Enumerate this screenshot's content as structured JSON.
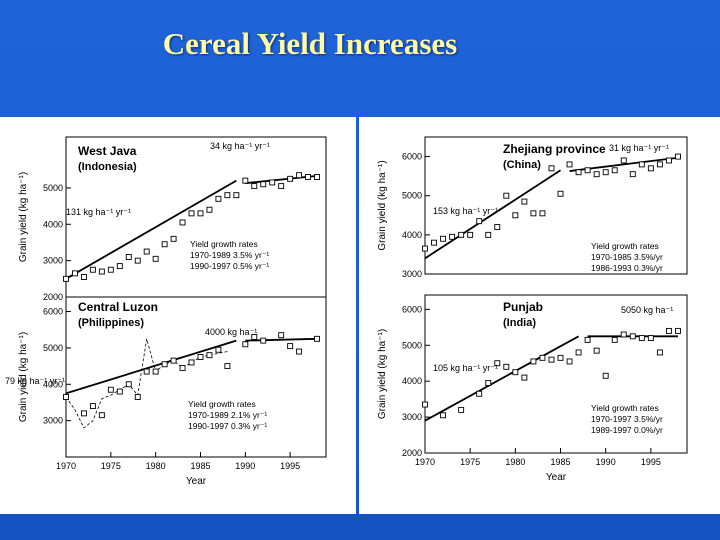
{
  "slide": {
    "title": "Cereal Yield Increases",
    "background_color": "#1a5cd0",
    "title_color": "#fff9a8"
  },
  "chart_data": [
    {
      "type": "scatter",
      "id": "west-java",
      "region": "West Java",
      "country": "(Indonesia)",
      "ylabel": "Grain yield (kg ha⁻¹)",
      "xlabel": "",
      "xlim": [
        1970,
        1999
      ],
      "ylim": [
        2000,
        6400
      ],
      "yticks": [
        2000,
        3000,
        4000,
        5000
      ],
      "yticklabels": [
        "2000",
        "3000",
        "4000",
        "5000"
      ],
      "points": [
        [
          1970,
          2500
        ],
        [
          1971,
          2650
        ],
        [
          1972,
          2550
        ],
        [
          1973,
          2750
        ],
        [
          1974,
          2700
        ],
        [
          1975,
          2750
        ],
        [
          1976,
          2850
        ],
        [
          1977,
          3100
        ],
        [
          1978,
          3000
        ],
        [
          1979,
          3250
        ],
        [
          1980,
          3050
        ],
        [
          1981,
          3450
        ],
        [
          1982,
          3600
        ],
        [
          1983,
          4050
        ],
        [
          1984,
          4300
        ],
        [
          1985,
          4300
        ],
        [
          1986,
          4400
        ],
        [
          1987,
          4700
        ],
        [
          1988,
          4800
        ],
        [
          1989,
          4800
        ],
        [
          1990,
          5200
        ],
        [
          1991,
          5050
        ],
        [
          1992,
          5100
        ],
        [
          1993,
          5150
        ],
        [
          1994,
          5050
        ],
        [
          1995,
          5250
        ],
        [
          1996,
          5350
        ],
        [
          1997,
          5300
        ],
        [
          1998,
          5300
        ]
      ],
      "trend_segments": [
        [
          [
            1970,
            2500
          ],
          [
            1989,
            5200
          ]
        ],
        [
          [
            1990,
            5130
          ],
          [
            1998,
            5330
          ]
        ]
      ],
      "annotations": {
        "slope_early": "131 kg ha⁻¹ yr⁻¹",
        "slope_late": "34 kg ha⁻¹ yr⁻¹",
        "growth_title": "Yield growth rates",
        "growth_1": "1970-1989  3.5% yr⁻¹",
        "growth_2": "1990-1997  0.5% yr⁻¹"
      }
    },
    {
      "type": "scatter",
      "id": "central-luzon",
      "region": "Central Luzon",
      "country": "(Philippines)",
      "ylabel": "Grain yield (kg ha⁻¹)",
      "xlabel": "Year",
      "xlim": [
        1970,
        1999
      ],
      "ylim": [
        2000,
        6400
      ],
      "xticks": [
        1970,
        1975,
        1980,
        1985,
        1990,
        1995
      ],
      "xticklabels": [
        "1970",
        "1975",
        "1980",
        "1985",
        "1990",
        "1995"
      ],
      "yticks": [
        3000,
        4000,
        5000,
        6000
      ],
      "yticklabels": [
        "3000",
        "4000",
        "5000",
        "6000"
      ],
      "points": [
        [
          1970,
          3650
        ],
        [
          1972,
          3200
        ],
        [
          1973,
          3400
        ],
        [
          1974,
          3150
        ],
        [
          1975,
          3850
        ],
        [
          1976,
          3800
        ],
        [
          1977,
          4000
        ],
        [
          1978,
          3650
        ],
        [
          1979,
          4350
        ],
        [
          1980,
          4350
        ],
        [
          1981,
          4550
        ],
        [
          1982,
          4650
        ],
        [
          1983,
          4450
        ],
        [
          1984,
          4600
        ],
        [
          1985,
          4750
        ],
        [
          1986,
          4800
        ],
        [
          1987,
          4950
        ],
        [
          1988,
          4500
        ],
        [
          1990,
          5100
        ],
        [
          1991,
          5300
        ],
        [
          1992,
          5200
        ],
        [
          1994,
          5350
        ],
        [
          1995,
          5050
        ],
        [
          1996,
          4900
        ],
        [
          1998,
          5250
        ]
      ],
      "irregular_line": [
        [
          1970,
          3650
        ],
        [
          1971,
          3300
        ],
        [
          1972,
          2800
        ],
        [
          1973,
          3000
        ],
        [
          1974,
          3600
        ],
        [
          1975,
          3700
        ],
        [
          1976,
          3850
        ],
        [
          1977,
          4000
        ],
        [
          1978,
          3700
        ],
        [
          1979,
          5250
        ],
        [
          1980,
          4350
        ],
        [
          1981,
          4550
        ],
        [
          1982,
          4650
        ],
        [
          1983,
          4450
        ],
        [
          1984,
          4600
        ],
        [
          1985,
          4750
        ],
        [
          1986,
          4800
        ],
        [
          1987,
          4850
        ],
        [
          1988,
          4900
        ]
      ],
      "trend_segments": [
        [
          [
            1970,
            3750
          ],
          [
            1989,
            5200
          ]
        ],
        [
          [
            1990,
            5200
          ],
          [
            1998,
            5250
          ]
        ]
      ],
      "annotations": {
        "slope_early": "79 kg ha⁻¹ yr⁻¹",
        "slope_late": "4000 kg ha⁻¹",
        "growth_title": "Yield growth rates",
        "growth_1": "1970-1989  2.1% yr⁻¹",
        "growth_2": "1990-1997  0.3% yr⁻¹"
      }
    },
    {
      "type": "scatter",
      "id": "zhejiang",
      "region": "Zhejiang province",
      "country": "(China)",
      "ylabel": "Grain yield (kg ha⁻¹)",
      "xlabel": "",
      "xlim": [
        1970,
        1999
      ],
      "ylim": [
        3000,
        6500
      ],
      "yticks": [
        3000,
        4000,
        5000,
        6000
      ],
      "yticklabels": [
        "3000",
        "4000",
        "5000",
        "6000"
      ],
      "points": [
        [
          1970,
          3650
        ],
        [
          1971,
          3800
        ],
        [
          1972,
          3900
        ],
        [
          1973,
          3950
        ],
        [
          1974,
          4000
        ],
        [
          1975,
          4000
        ],
        [
          1976,
          4350
        ],
        [
          1977,
          4000
        ],
        [
          1978,
          4200
        ],
        [
          1979,
          5000
        ],
        [
          1980,
          4500
        ],
        [
          1981,
          4850
        ],
        [
          1982,
          4550
        ],
        [
          1983,
          4550
        ],
        [
          1984,
          5700
        ],
        [
          1985,
          5050
        ],
        [
          1986,
          5800
        ],
        [
          1987,
          5600
        ],
        [
          1988,
          5650
        ],
        [
          1989,
          5550
        ],
        [
          1990,
          5600
        ],
        [
          1991,
          5650
        ],
        [
          1992,
          5900
        ],
        [
          1993,
          5550
        ],
        [
          1994,
          5800
        ],
        [
          1995,
          5700
        ],
        [
          1996,
          5800
        ],
        [
          1997,
          5900
        ],
        [
          1998,
          6000
        ]
      ],
      "trend_segments": [
        [
          [
            1970,
            3400
          ],
          [
            1985,
            5650
          ]
        ],
        [
          [
            1986,
            5630
          ],
          [
            1998,
            5970
          ]
        ]
      ],
      "annotations": {
        "slope_early": "153 kg ha⁻¹ yr⁻¹",
        "slope_late": "31 kg ha⁻¹ yr⁻¹",
        "growth_title": "Yield growth rates",
        "growth_1": "1970-1985  3.5%/yr",
        "growth_2": "1986-1993  0.3%/yr"
      }
    },
    {
      "type": "scatter",
      "id": "punjab",
      "region": "Punjab",
      "country": "(India)",
      "ylabel": "Grain yield (kg ha⁻¹)",
      "xlabel": "Year",
      "xlim": [
        1970,
        1999
      ],
      "ylim": [
        2000,
        6400
      ],
      "xticks": [
        1970,
        1975,
        1980,
        1985,
        1990,
        1995
      ],
      "xticklabels": [
        "1970",
        "1975",
        "1980",
        "1985",
        "1990",
        "1995"
      ],
      "yticks": [
        2000,
        3000,
        4000,
        5000,
        6000
      ],
      "yticklabels": [
        "2000",
        "3000",
        "4000",
        "5000",
        "6000"
      ],
      "points": [
        [
          1970,
          3350
        ],
        [
          1972,
          3050
        ],
        [
          1974,
          3200
        ],
        [
          1976,
          3650
        ],
        [
          1977,
          3950
        ],
        [
          1978,
          4500
        ],
        [
          1979,
          4400
        ],
        [
          1980,
          4250
        ],
        [
          1981,
          4100
        ],
        [
          1982,
          4550
        ],
        [
          1983,
          4650
        ],
        [
          1984,
          4600
        ],
        [
          1985,
          4650
        ],
        [
          1986,
          4550
        ],
        [
          1987,
          4800
        ],
        [
          1988,
          5150
        ],
        [
          1989,
          4850
        ],
        [
          1990,
          4150
        ],
        [
          1991,
          5150
        ],
        [
          1992,
          5300
        ],
        [
          1993,
          5250
        ],
        [
          1994,
          5200
        ],
        [
          1995,
          5200
        ],
        [
          1996,
          4800
        ],
        [
          1997,
          5400
        ],
        [
          1998,
          5400
        ]
      ],
      "trend_segments": [
        [
          [
            1970,
            2900
          ],
          [
            1987,
            5250
          ]
        ],
        [
          [
            1988,
            5250
          ],
          [
            1998,
            5250
          ]
        ]
      ],
      "annotations": {
        "slope_early": "105 kg ha⁻¹ yr⁻¹",
        "slope_late": "5050 kg ha⁻¹",
        "growth_title": "Yield growth rates",
        "growth_1": "1970-1997  3.5%/yr",
        "growth_2": "1989-1997  0.0%/yr"
      }
    }
  ]
}
